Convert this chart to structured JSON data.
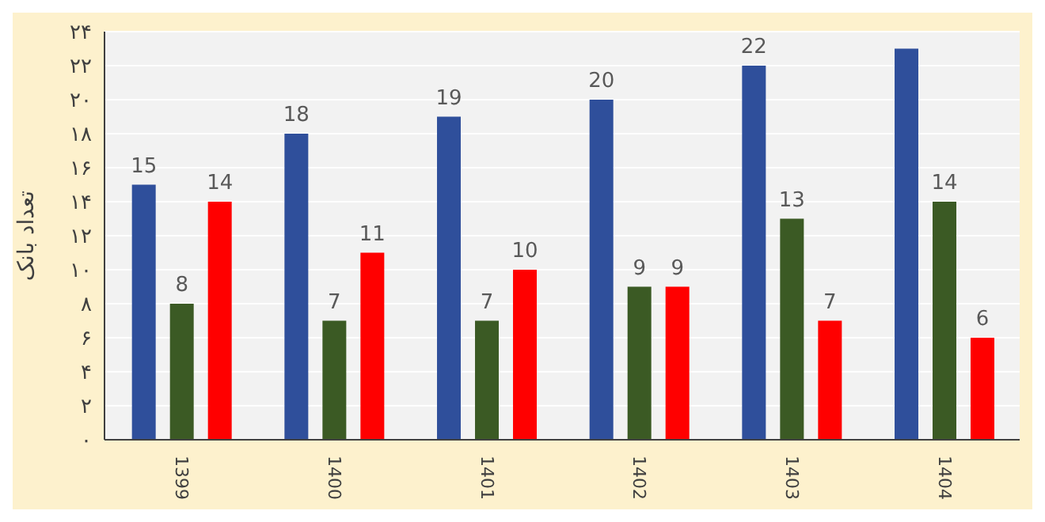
{
  "chart_data": {
    "type": "bar",
    "ylabel": "تعداد بانک",
    "categories": [
      "1399",
      "1400",
      "1401",
      "1402",
      "1403",
      "1404"
    ],
    "series": [
      {
        "color": "#2f4f9b",
        "values": [
          15,
          18,
          19,
          20,
          22,
          23
        ],
        "value_labels": [
          "15",
          "18",
          "19",
          "20",
          "22",
          null
        ]
      },
      {
        "color": "#3b5a24",
        "values": [
          8,
          7,
          7,
          9,
          13,
          14
        ],
        "value_labels": [
          "8",
          "7",
          "7",
          "9",
          "13",
          "14"
        ]
      },
      {
        "color": "#ff0000",
        "values": [
          14,
          11,
          10,
          9,
          7,
          6
        ],
        "value_labels": [
          "14",
          "11",
          "10",
          "9",
          "7",
          "6"
        ]
      }
    ],
    "ylim": [
      0,
      24
    ],
    "yticks": [
      {
        "value": 0,
        "label": "۰"
      },
      {
        "value": 2,
        "label": "۲"
      },
      {
        "value": 4,
        "label": "۴"
      },
      {
        "value": 6,
        "label": "۶"
      },
      {
        "value": 8,
        "label": "۸"
      },
      {
        "value": 10,
        "label": "۱۰"
      },
      {
        "value": 12,
        "label": "۱۲"
      },
      {
        "value": 14,
        "label": "۱۴"
      },
      {
        "value": 16,
        "label": "۱۶"
      },
      {
        "value": 18,
        "label": "۱۸"
      },
      {
        "value": 20,
        "label": "۲۰"
      },
      {
        "value": 22,
        "label": "۲۲"
      },
      {
        "value": 24,
        "label": "۲۴"
      }
    ],
    "grid": "y"
  }
}
